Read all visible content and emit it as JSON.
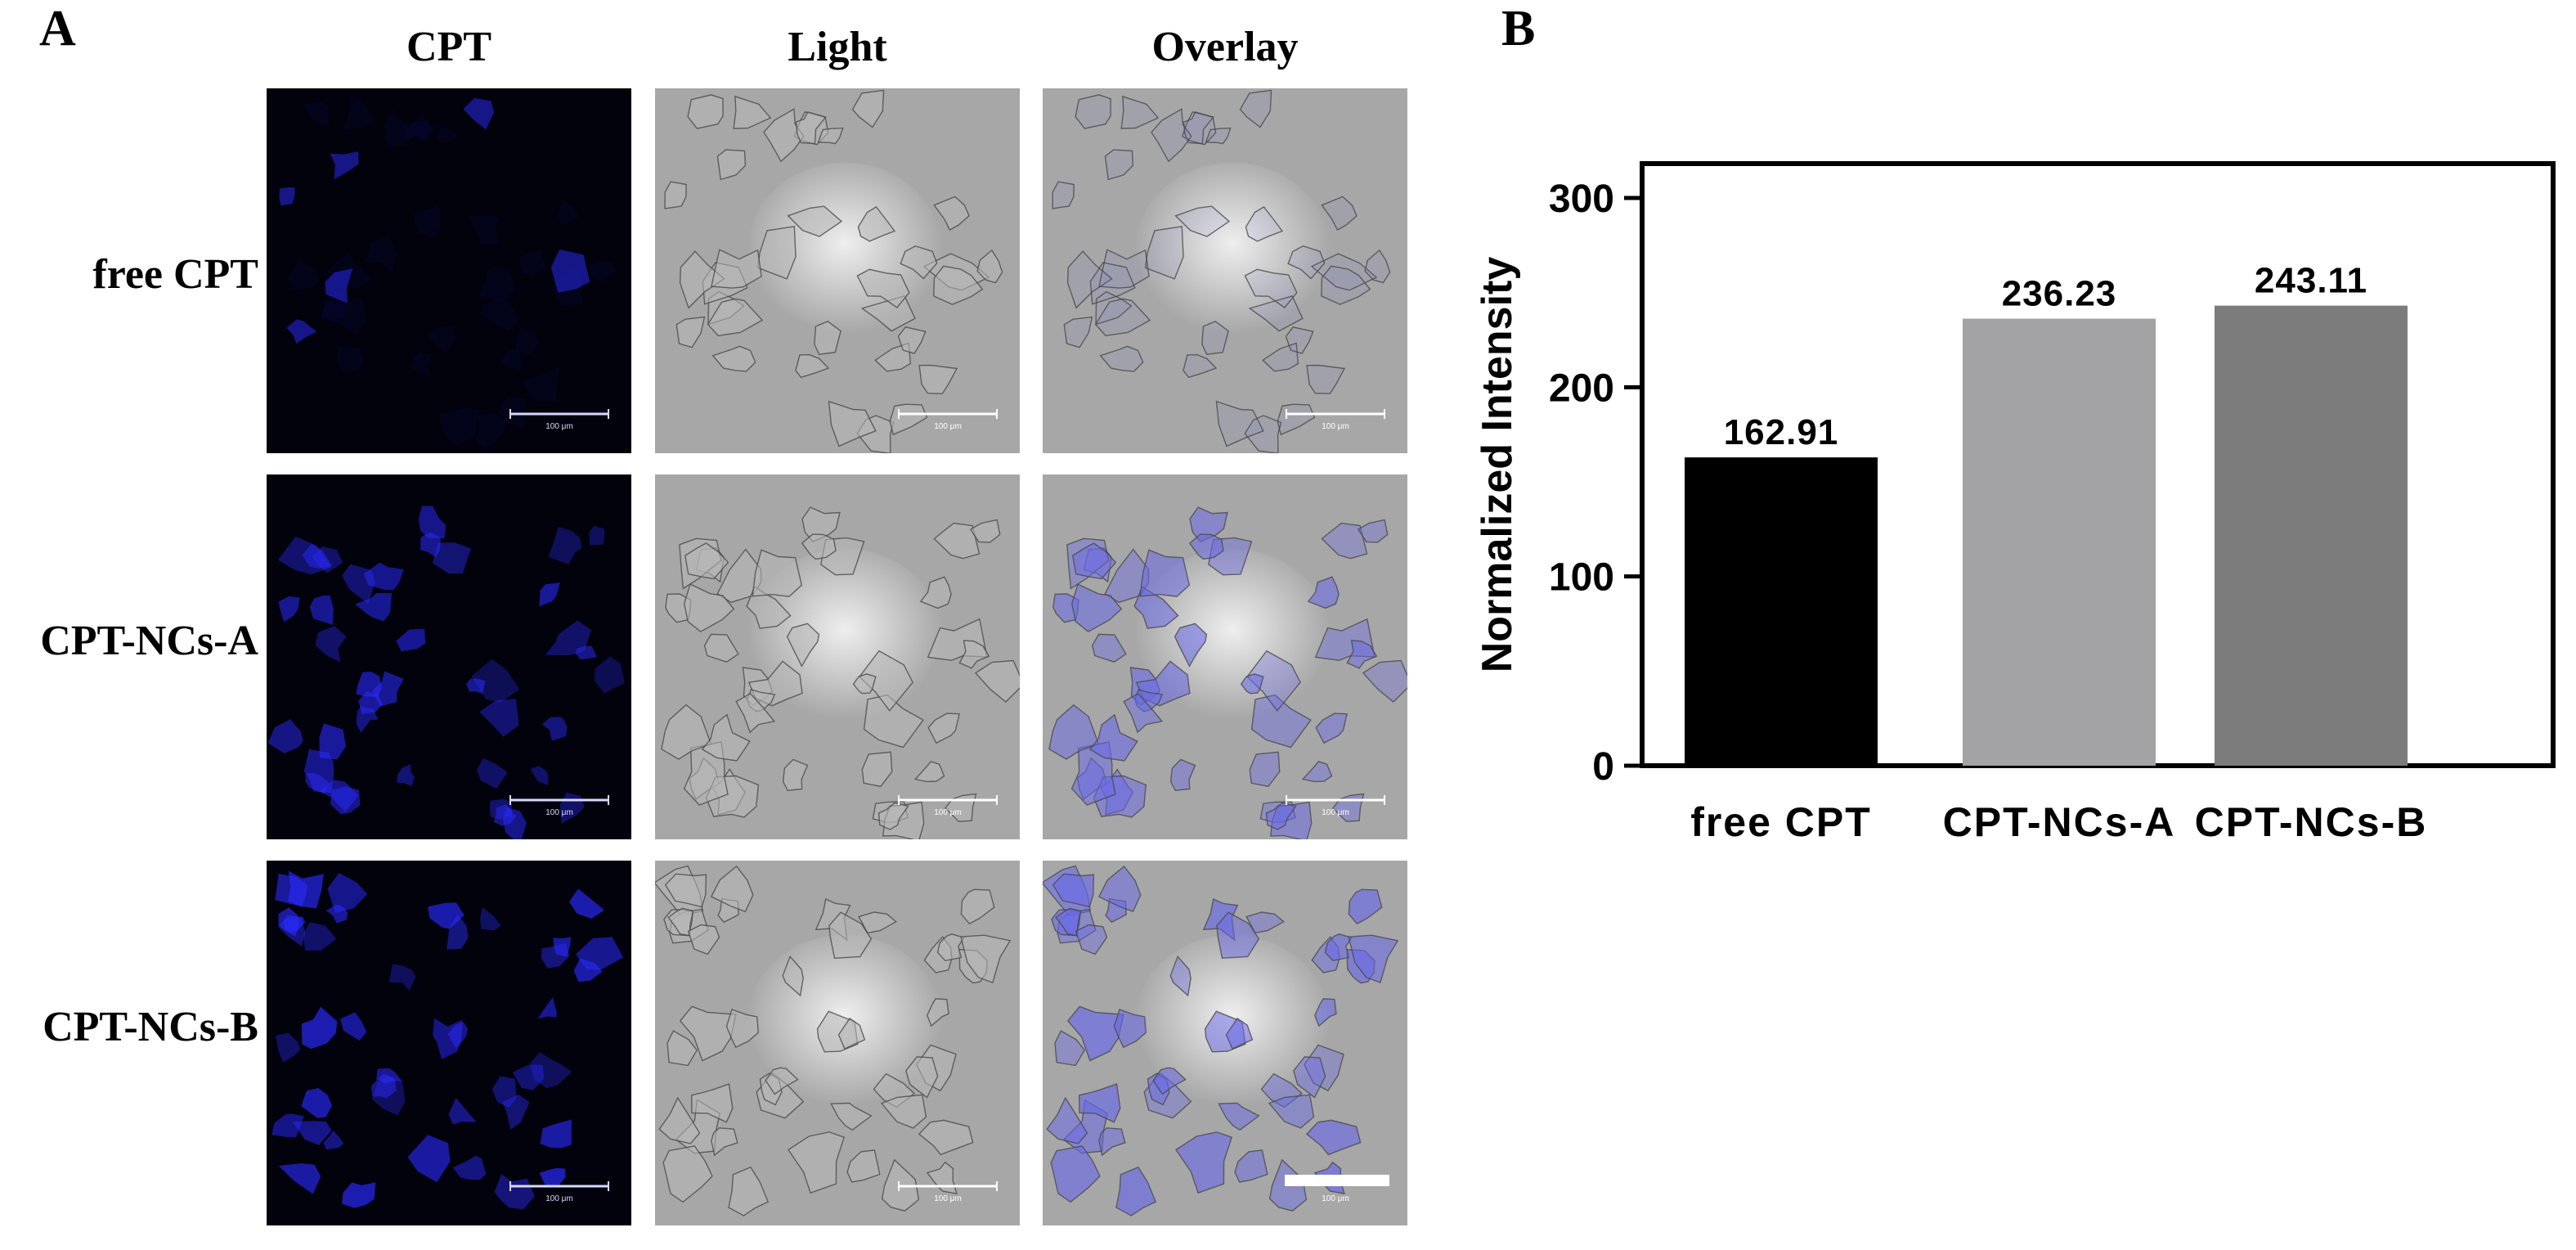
{
  "panel_a": {
    "letter": "A",
    "columns": [
      "CPT",
      "Light",
      "Overlay"
    ],
    "rows": [
      "free CPT",
      "CPT-NCs-A",
      "CPT-NCs-B"
    ],
    "scale_bar_text": "100 μm",
    "colors": {
      "fluorescence": "#2a2aff",
      "background_dark": "#02020c",
      "brightfield": "#a7a7a7"
    }
  },
  "panel_b": {
    "letter": "B"
  },
  "chart_data": {
    "type": "bar",
    "categories": [
      "free CPT",
      "CPT-NCs-A",
      "CPT-NCs-B"
    ],
    "values": [
      162.91,
      236.23,
      243.11
    ],
    "value_labels": [
      "162.91",
      "236.23",
      "243.11"
    ],
    "colors": [
      "#000000",
      "#a3a3a6",
      "#7c7c7c"
    ],
    "title": "",
    "xlabel": "",
    "ylabel": "Normalized Intensity",
    "ylim": [
      0,
      300
    ],
    "yticks": [
      0,
      100,
      200,
      300
    ],
    "ytick_labels": [
      "0",
      "100",
      "200",
      "300"
    ],
    "grid": false,
    "legend": "none"
  }
}
